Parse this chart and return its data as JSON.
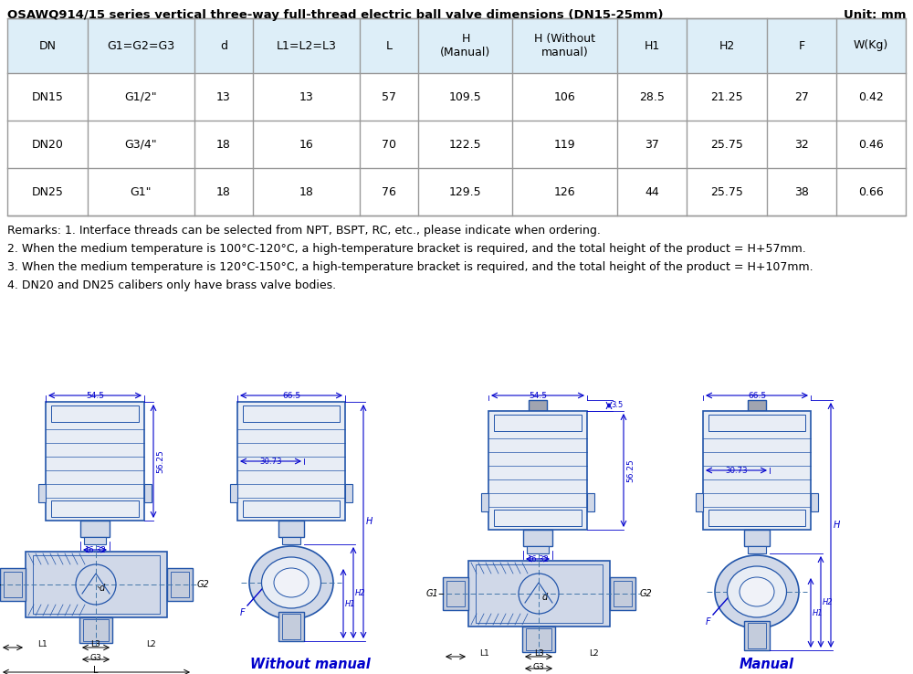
{
  "title": "OSAWQ914/15 series vertical three-way full-thread electric ball valve dimensions (DN15-25mm)",
  "unit_label": "Unit: mm",
  "table_headers": [
    "DN",
    "G1=G2=G3",
    "d",
    "L1=L2=L3",
    "L",
    "H\n(Manual)",
    "H (Without\nmanual)",
    "H1",
    "H2",
    "F",
    "W(Kg)"
  ],
  "table_data": [
    [
      "DN15",
      "G1/2\"",
      "13",
      "13",
      "57",
      "109.5",
      "106",
      "28.5",
      "21.25",
      "27",
      "0.42"
    ],
    [
      "DN20",
      "G3/4\"",
      "18",
      "16",
      "70",
      "122.5",
      "119",
      "37",
      "25.75",
      "32",
      "0.46"
    ],
    [
      "DN25",
      "G1\"",
      "18",
      "18",
      "76",
      "129.5",
      "126",
      "44",
      "25.75",
      "38",
      "0.66"
    ]
  ],
  "remarks": [
    "Remarks: 1. Interface threads can be selected from NPT, BSPT, RC, etc., please indicate when ordering.",
    "2. When the medium temperature is 100°C-120°C, a high-temperature bracket is required, and the total height of the product = H+57mm.",
    "3. When the medium temperature is 120°C-150°C, a high-temperature bracket is required, and the total height of the product = H+107mm.",
    "4. DN20 and DN25 calibers only have brass valve bodies."
  ],
  "without_manual_label": "Without manual",
  "manual_label": "Manual",
  "dim_54_5": "54.5",
  "dim_66_5": "66.5",
  "dim_56_25": "56.25",
  "dim_16_32": "16.32",
  "dim_30_73": "30.73",
  "dim_3_5": "3.5",
  "bg_color": "#ffffff",
  "table_header_bg": "#ddeef8",
  "border_color": "#999999",
  "dim_line_color": "#0000cc",
  "drawing_line_color": "#2255aa",
  "draw_fill_light": "#e8edf5",
  "draw_fill_mid": "#d0d8e8",
  "draw_fill_dark": "#b8c0d4",
  "draw_fill_hatch": "#c4ccdc",
  "text_color": "#000000",
  "title_fontsize": 9.5,
  "table_fontsize": 9,
  "remark_fontsize": 9,
  "label_fontsize": 7
}
